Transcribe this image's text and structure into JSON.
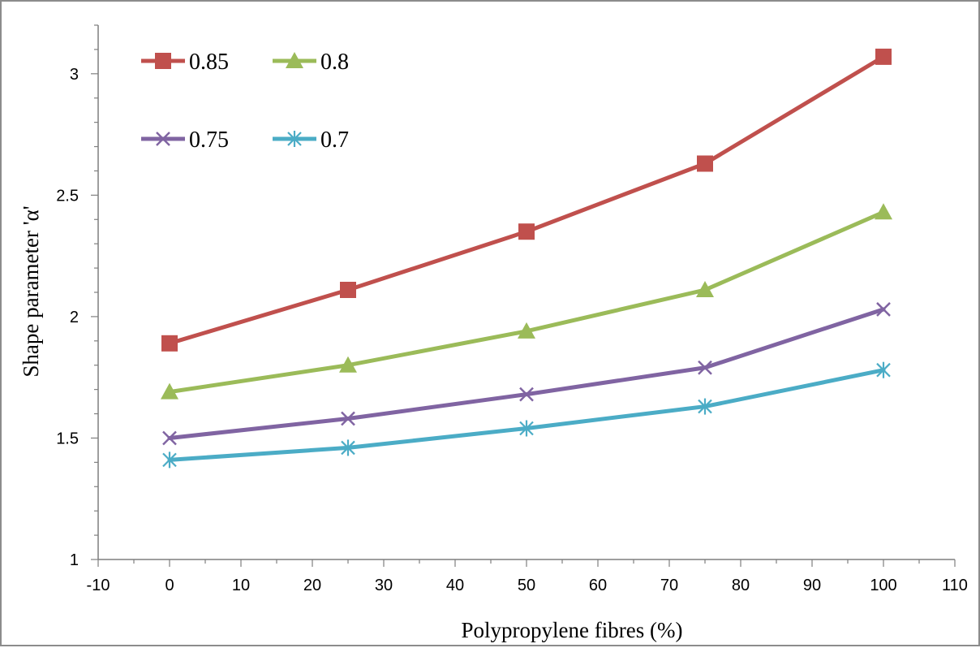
{
  "chart_data": {
    "type": "line",
    "title": "",
    "xlabel": "Polypropylene fibres (%)",
    "ylabel": "Shape parameter 'α'",
    "xlim": [
      -10,
      110
    ],
    "ylim": [
      1,
      3.2
    ],
    "x_ticks": [
      -10,
      0,
      10,
      20,
      30,
      40,
      50,
      60,
      70,
      80,
      90,
      100,
      110
    ],
    "y_ticks": [
      1,
      1.5,
      2,
      2.5,
      3
    ],
    "x_minor_step": 5,
    "y_minor_step": 0.1,
    "grid": false,
    "legend_position": "top-left",
    "x": [
      0,
      25,
      50,
      75,
      100
    ],
    "series": [
      {
        "name": "0.85",
        "values": [
          1.89,
          2.11,
          2.35,
          2.63,
          3.07
        ],
        "color": "#C0504D",
        "marker": "square"
      },
      {
        "name": "0.8",
        "values": [
          1.69,
          1.8,
          1.94,
          2.11,
          2.43
        ],
        "color": "#9BBB59",
        "marker": "triangle"
      },
      {
        "name": "0.75",
        "values": [
          1.5,
          1.58,
          1.68,
          1.79,
          2.03
        ],
        "color": "#8064A2",
        "marker": "x"
      },
      {
        "name": "0.7",
        "values": [
          1.41,
          1.46,
          1.54,
          1.63,
          1.78
        ],
        "color": "#4BACC6",
        "marker": "star"
      }
    ]
  }
}
